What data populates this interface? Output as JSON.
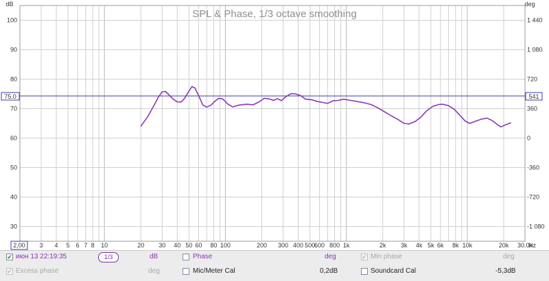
{
  "graph": {
    "title": "SPL & Phase, 1/3 octave smoothing",
    "left_unit": "dB",
    "right_unit": "deg",
    "freq_unit": "Hz",
    "left_ticks": [
      "100",
      "90",
      "80",
      "70",
      "60",
      "50",
      "40",
      "30"
    ],
    "right_ticks": [
      "1 440",
      "1 080",
      "720",
      "360",
      "0",
      "-360",
      "-720",
      "-1 080"
    ],
    "x_ticks": [
      "3",
      "4",
      "5",
      "6",
      "7",
      "8",
      "10",
      "20",
      "30",
      "40",
      "50",
      "60",
      "80",
      "100",
      "200",
      "300",
      "400",
      "500",
      "600",
      "800",
      "1k",
      "2k",
      "3k",
      "4k",
      "5k",
      "6k",
      "8k",
      "10k",
      "20k",
      "30.0k"
    ],
    "x_min_label": "2,00",
    "marker_left": "75.0",
    "marker_right": "541",
    "colors": {
      "trace": "#8a35b8",
      "marker": "#3838a8",
      "grid": "#cfcfcf"
    }
  },
  "chart_data": {
    "type": "line",
    "x_scale": "log",
    "xlim": [
      2,
      30000
    ],
    "ylim": [
      25,
      105
    ],
    "ylabel": "dB",
    "y2label": "deg",
    "y2lim": [
      -1260,
      1620
    ],
    "grid": true,
    "series": [
      {
        "x": [
          20,
          23,
          26,
          28,
          30,
          32,
          34,
          37,
          40,
          43,
          46,
          50,
          53,
          56,
          60,
          65,
          70,
          76,
          82,
          88,
          95,
          105,
          115,
          130,
          150,
          170,
          190,
          210,
          230,
          250,
          270,
          290,
          320,
          350,
          380,
          420,
          460,
          520,
          580,
          640,
          700,
          780,
          860,
          950,
          1050,
          1200,
          1400,
          1600,
          1800,
          2000,
          2300,
          2700,
          3000,
          3300,
          3700,
          4100,
          4600,
          5200,
          5800,
          6300,
          7000,
          7800,
          8700,
          9600,
          10500,
          11500,
          13000,
          14500,
          16000,
          17500,
          19000,
          21000,
          23000
        ],
        "values": [
          64,
          67.5,
          71.5,
          74,
          75.7,
          75.8,
          74.8,
          73.2,
          72.3,
          72.2,
          73.5,
          76,
          77.5,
          77,
          74.5,
          71.3,
          70.5,
          71.2,
          72.5,
          73.5,
          73.3,
          71.5,
          70.6,
          71.2,
          71.5,
          71.3,
          72.3,
          73.5,
          73.3,
          72.8,
          73.4,
          72.7,
          74.2,
          75.1,
          75.0,
          74.4,
          73.2,
          73.0,
          72.4,
          72.1,
          71.8,
          72.7,
          72.8,
          73.2,
          72.9,
          72.5,
          72.0,
          71.4,
          70.4,
          69.3,
          67.8,
          66.2,
          65.0,
          64.8,
          65.6,
          67.0,
          69.2,
          70.8,
          71.4,
          71.5,
          71.0,
          69.8,
          67.7,
          65.8,
          65.0,
          65.6,
          66.4,
          66.8,
          66.0,
          64.8,
          63.8,
          64.6,
          65.2
        ]
      }
    ]
  },
  "legend": {
    "row1": {
      "trace_label": "июн 13 22:19:35",
      "trace_checked": true,
      "smoothing": "1/3",
      "trace_unit": "dB",
      "phase_label": "Phase",
      "phase_unit": "deg",
      "min_phase_label": "Min phase",
      "min_phase_unit": "deg"
    },
    "row2": {
      "excess_label": "Excess phase",
      "excess_unit": "deg",
      "mic_label": "Mic/Meter Cal",
      "mic_value": "0,2dB",
      "soundcard_label": "Soundcard Cal",
      "soundcard_value": "-5,3dB"
    },
    "check_mark": "✔"
  }
}
